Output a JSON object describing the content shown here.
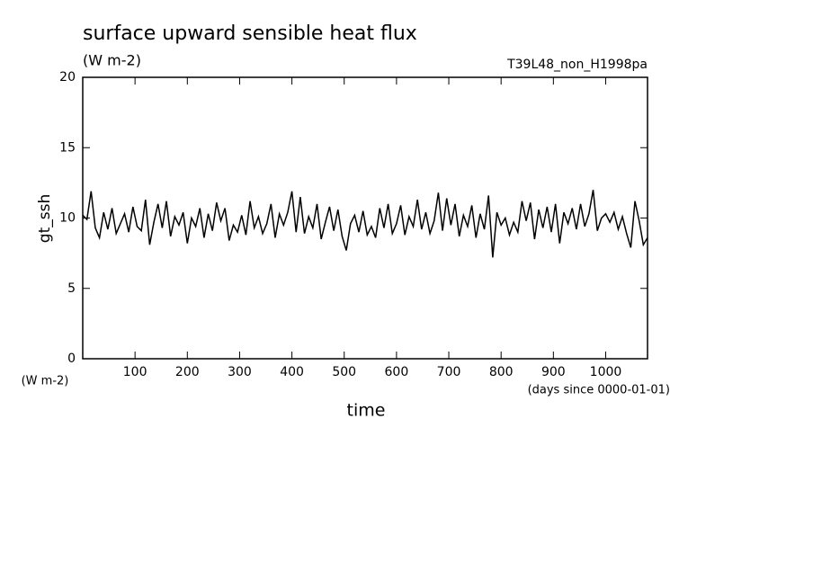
{
  "chart_data": {
    "type": "line",
    "title": "surface upward sensible heat flux",
    "subtitle": "(W m-2)",
    "annotation": "T39L48_non_H1998pa",
    "y_label": "gt_ssh",
    "y_units": "(W m-2)",
    "x_label": "time",
    "x_units": "(days since 0000-01-01)",
    "xlim": [
      0,
      1080
    ],
    "xticks": [
      100,
      200,
      300,
      400,
      500,
      600,
      700,
      800,
      900,
      1000
    ],
    "ylim": [
      0,
      20
    ],
    "yticks": [
      0,
      5,
      10,
      15,
      20
    ],
    "color": "#000000",
    "x": [
      0,
      8,
      16,
      24,
      32,
      40,
      48,
      56,
      64,
      72,
      80,
      88,
      96,
      104,
      112,
      120,
      128,
      136,
      144,
      152,
      160,
      168,
      176,
      184,
      192,
      200,
      208,
      216,
      224,
      232,
      240,
      248,
      256,
      264,
      272,
      280,
      288,
      296,
      304,
      312,
      320,
      328,
      336,
      344,
      352,
      360,
      368,
      376,
      384,
      392,
      400,
      408,
      416,
      424,
      432,
      440,
      448,
      456,
      464,
      472,
      480,
      488,
      496,
      504,
      512,
      520,
      528,
      536,
      544,
      552,
      560,
      568,
      576,
      584,
      592,
      600,
      608,
      616,
      624,
      632,
      640,
      648,
      656,
      664,
      672,
      680,
      688,
      696,
      704,
      712,
      720,
      728,
      736,
      744,
      752,
      760,
      768,
      776,
      784,
      792,
      800,
      808,
      816,
      824,
      832,
      840,
      848,
      856,
      864,
      872,
      880,
      888,
      896,
      904,
      912,
      920,
      928,
      936,
      944,
      952,
      960,
      968,
      976,
      984,
      992,
      1000,
      1008,
      1016,
      1024,
      1032,
      1040,
      1048,
      1056,
      1064,
      1072,
      1080
    ],
    "values": [
      10.2,
      9.9,
      11.9,
      9.3,
      8.6,
      10.4,
      9.2,
      10.7,
      8.9,
      9.6,
      10.3,
      9.0,
      10.8,
      9.4,
      9.1,
      11.3,
      8.1,
      9.7,
      11.0,
      9.3,
      11.2,
      8.7,
      10.1,
      9.5,
      10.4,
      8.2,
      10.0,
      9.4,
      10.7,
      8.6,
      10.3,
      9.1,
      11.1,
      9.8,
      10.7,
      8.4,
      9.5,
      9.0,
      10.2,
      8.8,
      11.2,
      9.3,
      10.1,
      8.9,
      9.6,
      11.0,
      8.6,
      10.3,
      9.5,
      10.4,
      11.9,
      9.0,
      11.5,
      8.9,
      10.1,
      9.3,
      11.0,
      8.5,
      9.7,
      10.8,
      9.1,
      10.6,
      8.7,
      7.7,
      9.6,
      10.2,
      9.0,
      10.5,
      8.8,
      9.4,
      8.6,
      10.7,
      9.3,
      11.0,
      8.9,
      9.6,
      10.9,
      8.8,
      10.1,
      9.4,
      11.3,
      9.2,
      10.4,
      8.9,
      9.8,
      11.8,
      9.1,
      11.4,
      9.5,
      11.0,
      8.7,
      10.2,
      9.4,
      10.9,
      8.6,
      10.3,
      9.2,
      11.6,
      7.2,
      10.4,
      9.5,
      10.0,
      8.8,
      9.7,
      9.0,
      11.2,
      9.8,
      11.1,
      8.5,
      10.6,
      9.3,
      10.8,
      9.0,
      11.0,
      8.2,
      10.4,
      9.6,
      10.7,
      9.2,
      11.0,
      9.4,
      10.3,
      12.0,
      9.1,
      10.0,
      10.3,
      9.7,
      10.4,
      9.2,
      10.1,
      8.9,
      7.9,
      11.2,
      9.8,
      8.1,
      8.6
    ]
  }
}
